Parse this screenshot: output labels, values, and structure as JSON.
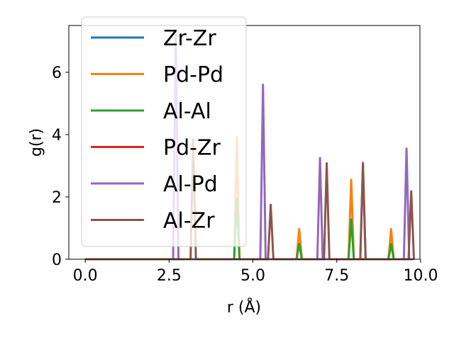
{
  "chart_data": {
    "type": "line",
    "xlabel": "r (Å)",
    "ylabel": "g(r)",
    "xlim": [
      -0.49,
      9.98
    ],
    "ylim": [
      0,
      7.5
    ],
    "xticks": [
      0.0,
      2.5,
      5.0,
      7.5,
      10.0
    ],
    "xtick_labels": [
      "0.0",
      "2.5",
      "5.0",
      "7.5",
      "10.0"
    ],
    "yticks": [
      0,
      2,
      4,
      6
    ],
    "ytick_labels": [
      "0",
      "2",
      "4",
      "6"
    ],
    "grid": false,
    "legend_position": "top-left",
    "peak_half_width": 0.08,
    "x_range": [
      0.0,
      9.8
    ],
    "series": [
      {
        "name": "Zr-Zr",
        "color": "#1f77b4",
        "peaks": []
      },
      {
        "name": "Pd-Pd",
        "color": "#ff7f0e",
        "peaks": [
          [
            4.52,
            3.9
          ],
          [
            6.38,
            0.97
          ],
          [
            7.93,
            2.55
          ],
          [
            9.12,
            0.97
          ]
        ]
      },
      {
        "name": "Al-Al",
        "color": "#2ca02c",
        "peaks": [
          [
            4.52,
            1.95
          ],
          [
            6.38,
            0.49
          ],
          [
            7.93,
            1.28
          ],
          [
            9.12,
            0.49
          ]
        ]
      },
      {
        "name": "Pd-Zr",
        "color": "#d62728",
        "peaks": []
      },
      {
        "name": "Al-Pd",
        "color": "#9467bd",
        "peaks": [
          [
            2.7,
            7.2
          ],
          [
            5.3,
            5.6
          ],
          [
            7.0,
            3.25
          ],
          [
            8.28,
            3.1
          ],
          [
            9.58,
            3.55
          ]
        ]
      },
      {
        "name": "Al-Zr",
        "color": "#8c564b",
        "peaks": [
          [
            3.22,
            3.85
          ],
          [
            5.53,
            1.75
          ],
          [
            7.2,
            3.08
          ],
          [
            8.28,
            3.05
          ],
          [
            9.72,
            2.18
          ]
        ]
      }
    ]
  }
}
